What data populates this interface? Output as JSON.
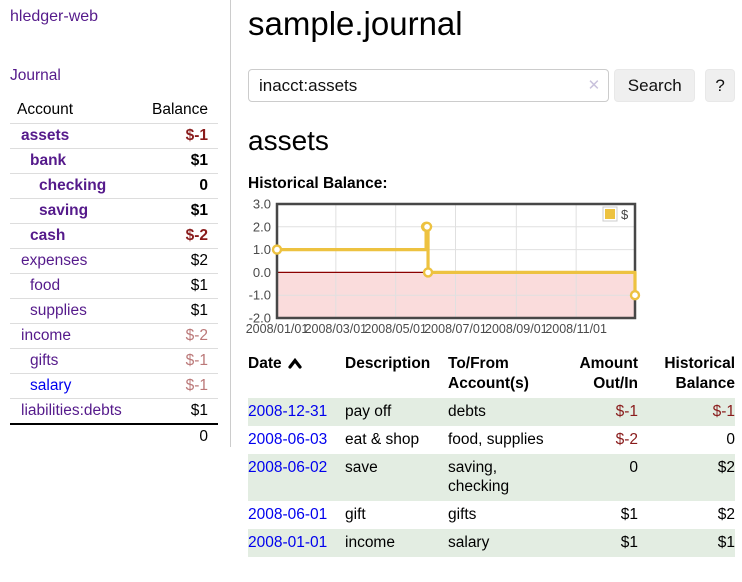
{
  "sidebar": {
    "brand": "hledger-web",
    "journal_link": "Journal",
    "accounts_table": {
      "headers": {
        "account": "Account",
        "balance": "Balance"
      },
      "rows": [
        {
          "name": "assets",
          "indent": 1,
          "bold": true,
          "color": "purple",
          "balance": "$-1",
          "balance_class": "neg-strong"
        },
        {
          "name": "bank",
          "indent": 2,
          "bold": true,
          "color": "purple",
          "balance": "$1",
          "balance_class": ""
        },
        {
          "name": "checking",
          "indent": 3,
          "bold": true,
          "color": "purple",
          "balance": "0",
          "balance_class": ""
        },
        {
          "name": "saving",
          "indent": 3,
          "bold": true,
          "color": "purple",
          "balance": "$1",
          "balance_class": ""
        },
        {
          "name": "cash",
          "indent": 2,
          "bold": true,
          "color": "purple",
          "balance": "$-2",
          "balance_class": "neg-strong"
        },
        {
          "name": "expenses",
          "indent": 1,
          "bold": false,
          "color": "purple",
          "balance": "$2",
          "balance_class": ""
        },
        {
          "name": "food",
          "indent": 2,
          "bold": false,
          "color": "purple",
          "balance": "$1",
          "balance_class": ""
        },
        {
          "name": "supplies",
          "indent": 2,
          "bold": false,
          "color": "purple",
          "balance": "$1",
          "balance_class": ""
        },
        {
          "name": "income",
          "indent": 1,
          "bold": false,
          "color": "purple",
          "balance": "$-2",
          "balance_class": "neg-weak"
        },
        {
          "name": "gifts",
          "indent": 2,
          "bold": false,
          "color": "purple",
          "balance": "$-1",
          "balance_class": "neg-weak"
        },
        {
          "name": "salary",
          "indent": 2,
          "bold": false,
          "color": "blue",
          "balance": "$-1",
          "balance_class": "neg-weak"
        },
        {
          "name": "liabilities:debts",
          "indent": 1,
          "bold": false,
          "color": "purple",
          "balance": "$1",
          "balance_class": ""
        }
      ],
      "total": "0"
    }
  },
  "main": {
    "title": "sample.journal",
    "search": {
      "query": "inacct:assets",
      "clear_icon": "✕",
      "button_label": "Search",
      "help_label": "?"
    },
    "account_heading": "assets",
    "chart_heading": "Historical Balance:"
  },
  "chart_data": {
    "type": "line",
    "title": "Historical Balance",
    "step": true,
    "x_range": [
      "2008-01-01",
      "2008-12-31"
    ],
    "ylim": [
      -2,
      3
    ],
    "y_ticks": [
      "3.0",
      "2.0",
      "1.0",
      "0.0",
      "-1.0",
      "-2.0"
    ],
    "x_ticks": [
      "2008/01/01",
      "2008/03/01",
      "2008/05/01",
      "2008/07/01",
      "2008/09/01",
      "2008/11/01"
    ],
    "series": [
      {
        "name": "$",
        "color": "#edc240",
        "points": [
          {
            "date": "2008-01-01",
            "value": 1
          },
          {
            "date": "2008-06-01",
            "value": 2
          },
          {
            "date": "2008-06-02",
            "value": 2
          },
          {
            "date": "2008-06-03",
            "value": 0
          },
          {
            "date": "2008-12-31",
            "value": -1
          }
        ]
      }
    ],
    "legend": {
      "label": "$",
      "position": "top-right"
    },
    "grid": true,
    "negative_region_color": "#fadcdc",
    "zero_line_color": "#8b0000",
    "border_color": "#474747",
    "gridline_color": "#e0e0e0",
    "tick_color": "#4a4a4a"
  },
  "register": {
    "headers": {
      "date": "Date",
      "description": "Description",
      "account": "To/From\nAccount(s)",
      "amount": "Amount\nOut/In",
      "balance": "Historical\nBalance"
    },
    "sort_icon": "chevron-up",
    "rows": [
      {
        "date": "2008-12-31",
        "description": "pay off",
        "accounts": "debts",
        "amount": "$-1",
        "amount_neg": true,
        "balance": "$-1",
        "balance_neg": true
      },
      {
        "date": "2008-06-03",
        "description": "eat & shop",
        "accounts": "food, supplies",
        "amount": "$-2",
        "amount_neg": true,
        "balance": "0",
        "balance_neg": false
      },
      {
        "date": "2008-06-02",
        "description": "save",
        "accounts": "saving,\nchecking",
        "amount": "0",
        "amount_neg": false,
        "balance": "$2",
        "balance_neg": false
      },
      {
        "date": "2008-06-01",
        "description": "gift",
        "accounts": "gifts",
        "amount": "$1",
        "amount_neg": false,
        "balance": "$2",
        "balance_neg": false
      },
      {
        "date": "2008-01-01",
        "description": "income",
        "accounts": "salary",
        "amount": "$1",
        "amount_neg": false,
        "balance": "$1",
        "balance_neg": false
      }
    ]
  },
  "colors": {
    "link_purple": "#551a8b",
    "link_blue": "#0000ee",
    "negative_strong": "#891b1b",
    "negative_weak": "#bb7878",
    "row_stripe_green": "#e3ede2",
    "chart_line_gold": "#edc240",
    "chart_negative_fill": "#fadcdc",
    "zero_line": "#8b0000"
  }
}
